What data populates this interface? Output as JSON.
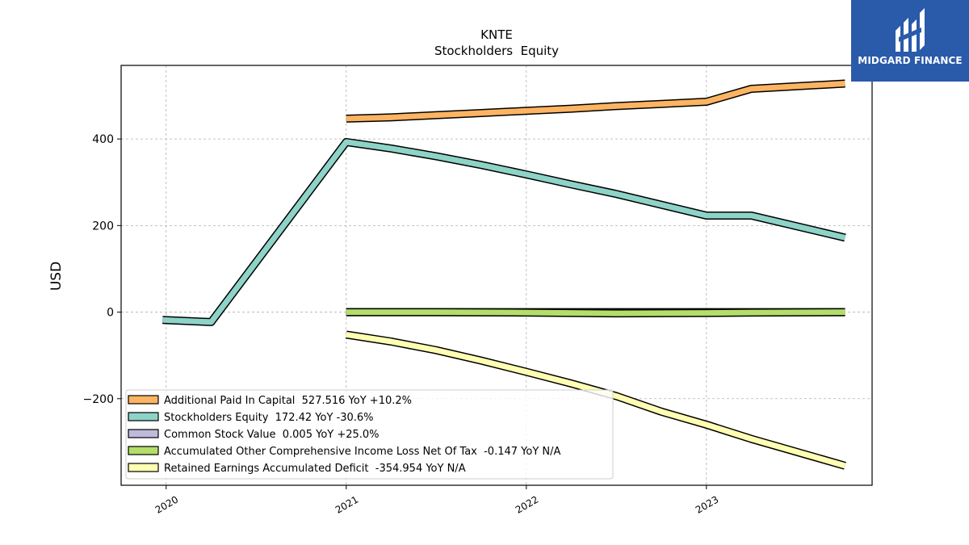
{
  "chart_data": {
    "type": "line",
    "title": "KNTE",
    "subtitle": "Stockholders  Equity",
    "ylabel": "USD",
    "xlabel": "",
    "ylim": [
      -400,
      570
    ],
    "xlim": [
      2019.75,
      2023.92
    ],
    "yticks": [
      400,
      200,
      0,
      -200
    ],
    "ytick_labels": [
      "400",
      "200",
      "0",
      "−200"
    ],
    "xticks": [
      2020,
      2021,
      2022,
      2023
    ],
    "xtick_labels": [
      "2020",
      "2021",
      "2022",
      "2023"
    ],
    "grid": true,
    "legend_position": "lower-left",
    "series": [
      {
        "name": "Stockholders Equity",
        "legend": "Stockholders Equity  172.42 YoY -30.6%",
        "color": "#8dd3c7",
        "x": [
          2019.98,
          2020.25,
          2021.0,
          2021.25,
          2021.5,
          2021.75,
          2022.0,
          2022.25,
          2022.5,
          2022.75,
          2023.0,
          2023.25,
          2023.77
        ],
        "y": [
          -18,
          -23,
          393,
          378,
          360,
          340,
          318,
          295,
          273,
          248,
          223,
          223,
          172
        ]
      },
      {
        "name": "Additional Paid In Capital",
        "legend": "Additional Paid In Capital  527.516 YoY +10.2%",
        "color": "#fdb462",
        "x": [
          2021.0,
          2021.25,
          2021.5,
          2021.75,
          2022.0,
          2022.25,
          2022.5,
          2022.75,
          2023.0,
          2023.25,
          2023.77
        ],
        "y": [
          447,
          450,
          455,
          460,
          465,
          470,
          476,
          481,
          486,
          516,
          528
        ]
      },
      {
        "name": "Common Stock Value",
        "legend": "Common Stock Value  0.005 YoY +25.0%",
        "color": "#bebada",
        "x": [
          2021.0,
          2021.5,
          2022.0,
          2022.5,
          2023.0,
          2023.25,
          2023.77
        ],
        "y": [
          0.004,
          0.004,
          0.004,
          0.004,
          0.004,
          0.005,
          0.005
        ]
      },
      {
        "name": "Accumulated Other Comprehensive Income Loss Net Of Tax",
        "legend": "Accumulated Other Comprehensive Income Loss Net Of Tax  -0.147 YoY N/A",
        "color": "#b3de69",
        "x": [
          2021.0,
          2021.5,
          2022.0,
          2022.5,
          2023.0,
          2023.25,
          2023.77
        ],
        "y": [
          0,
          0,
          -1,
          -3,
          -2,
          -1,
          -0.147
        ]
      },
      {
        "name": "Retained Earnings Accumulated Deficit",
        "legend": "Retained Earnings Accumulated Deficit  -354.954 YoY N/A",
        "color": "#ffffb3",
        "x": [
          2021.0,
          2021.25,
          2021.5,
          2021.75,
          2022.0,
          2022.25,
          2022.5,
          2022.75,
          2023.0,
          2023.25,
          2023.77
        ],
        "y": [
          -52,
          -68,
          -88,
          -112,
          -138,
          -165,
          -194,
          -230,
          -260,
          -293,
          -355
        ]
      }
    ],
    "legend_order": [
      "Additional Paid In Capital",
      "Stockholders Equity",
      "Common Stock Value",
      "Accumulated Other Comprehensive Income Loss Net Of Tax",
      "Retained Earnings Accumulated Deficit"
    ]
  },
  "logo": {
    "text": "MIDGARD FINANCE",
    "background": "#2a5aaa"
  }
}
